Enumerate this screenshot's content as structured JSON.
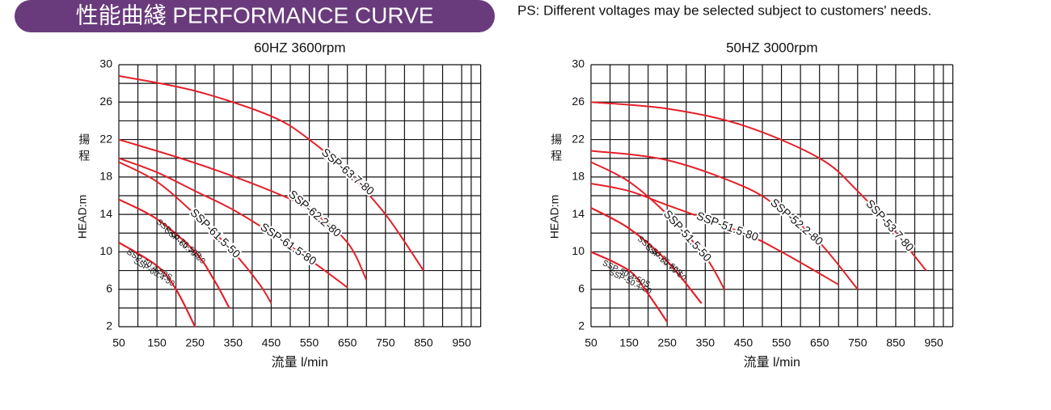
{
  "header": {
    "title": "性能曲綫 PERFORMANCE CURVE",
    "note": "PS: Different voltages may be selected subject to customers' needs."
  },
  "chart_data": [
    {
      "type": "line",
      "title": "60HZ  3600rpm",
      "x_label": "流量 l/min",
      "y_label": "HEAD:m",
      "y_label_cn": "揚程",
      "xlim": [
        50,
        1000
      ],
      "ylim": [
        2,
        30
      ],
      "xticks": [
        50,
        150,
        250,
        350,
        450,
        550,
        650,
        750,
        850,
        950
      ],
      "yticks": [
        2,
        6,
        10,
        14,
        18,
        22,
        26,
        30
      ],
      "grid": true,
      "minor_grid": true,
      "series": [
        {
          "name": "SSP-63.7-80",
          "color": "#e4202a",
          "x": [
            50,
            250,
            450,
            550,
            650,
            750,
            850
          ],
          "values": [
            28.8,
            27.2,
            24.5,
            22,
            18.5,
            14,
            8
          ]
        },
        {
          "name": "SSP-62.2-80",
          "color": "#e4202a",
          "x": [
            50,
            250,
            450,
            550,
            650,
            700
          ],
          "values": [
            22,
            19.5,
            16.5,
            14.5,
            11,
            7
          ]
        },
        {
          "name": "SSP-61.5-80",
          "color": "#e4202a",
          "x": [
            50,
            150,
            250,
            350,
            450,
            550,
            650
          ],
          "values": [
            20,
            18.5,
            16.5,
            14.5,
            12,
            9.2,
            6.2
          ]
        },
        {
          "name": "SSP-61.5-50",
          "color": "#e4202a",
          "x": [
            50,
            150,
            250,
            350,
            420,
            450
          ],
          "values": [
            19.6,
            17.5,
            14,
            10,
            6.5,
            4.5
          ]
        },
        {
          "name": "SSP-60.75-50",
          "color": "#e4202a",
          "x": [
            50,
            150,
            250,
            300,
            340
          ],
          "values": [
            15.6,
            13.5,
            10,
            7,
            4
          ]
        },
        {
          "name": "SSP-60.75-50S",
          "color": "#e4202a",
          "x": [
            50,
            150,
            250,
            300,
            340
          ],
          "values": [
            15.6,
            13.5,
            10,
            7,
            4
          ]
        },
        {
          "name": "SSP-60.4-50",
          "color": "#e4202a",
          "x": [
            50,
            150,
            200,
            250
          ],
          "values": [
            11,
            8.5,
            6,
            2
          ]
        },
        {
          "name": "SSP-60.4-50S",
          "color": "#e4202a",
          "x": [
            50,
            150,
            200,
            250
          ],
          "values": [
            11,
            8.5,
            6,
            2
          ]
        }
      ]
    },
    {
      "type": "line",
      "title": "50HZ  3000rpm",
      "x_label": "流量 l/min",
      "y_label": "HEAD:m",
      "y_label_cn": "揚程",
      "xlim": [
        50,
        1000
      ],
      "ylim": [
        2,
        30
      ],
      "xticks": [
        50,
        150,
        250,
        350,
        450,
        550,
        650,
        750,
        850,
        950
      ],
      "yticks": [
        2,
        6,
        10,
        14,
        18,
        22,
        26,
        30
      ],
      "grid": true,
      "minor_grid": true,
      "series": [
        {
          "name": "SSP-53.7-80",
          "color": "#e4202a",
          "x": [
            50,
            250,
            450,
            650,
            750,
            850,
            930
          ],
          "values": [
            26,
            25.3,
            23.5,
            20,
            16.5,
            12,
            8
          ]
        },
        {
          "name": "SSP-52.2-80",
          "color": "#e4202a",
          "x": [
            50,
            250,
            450,
            550,
            650,
            750
          ],
          "values": [
            20.8,
            19.8,
            17,
            14.5,
            11,
            6
          ]
        },
        {
          "name": "SSP-51.5-80",
          "color": "#e4202a",
          "x": [
            50,
            150,
            250,
            450,
            550,
            700
          ],
          "values": [
            17.3,
            16.5,
            15,
            12,
            10,
            6.5
          ]
        },
        {
          "name": "SSP-51.5-50",
          "color": "#e4202a",
          "x": [
            50,
            150,
            250,
            350,
            400
          ],
          "values": [
            19.6,
            17.5,
            14,
            9.5,
            6
          ]
        },
        {
          "name": "SSP-50.75-50",
          "color": "#e4202a",
          "x": [
            50,
            150,
            250,
            340
          ],
          "values": [
            14.7,
            12.5,
            9,
            4.5
          ]
        },
        {
          "name": "SSP-50.75-50S",
          "color": "#e4202a",
          "x": [
            50,
            150,
            250,
            340
          ],
          "values": [
            14.7,
            12.5,
            9,
            4.5
          ]
        },
        {
          "name": "SSP-50.4-50",
          "color": "#e4202a",
          "x": [
            50,
            150,
            200,
            250
          ],
          "values": [
            10,
            8,
            5.5,
            2.5
          ]
        },
        {
          "name": "SSP-50.4-50S",
          "color": "#e4202a",
          "x": [
            50,
            150,
            200,
            250
          ],
          "values": [
            10,
            8,
            5.5,
            2.5
          ]
        }
      ]
    }
  ]
}
